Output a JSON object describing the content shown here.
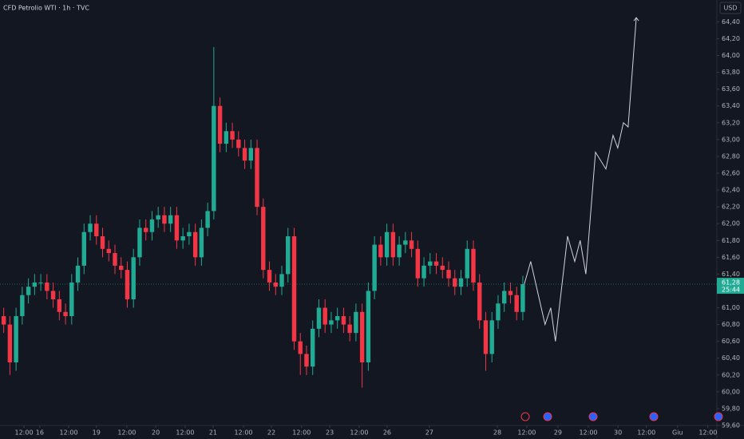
{
  "chart_data": {
    "type": "candlestick",
    "title": "CFD Petrolio WTI · 1h · TVC",
    "currency": "USD",
    "up_color": "#22ab94",
    "down_color": "#f23645",
    "x": [
      1.5,
      4,
      6.5,
      9,
      11.5,
      14,
      16.5,
      19,
      21.5,
      24,
      26.5,
      29,
      31.5,
      34,
      36.5,
      39,
      41.5,
      44,
      46.5,
      49,
      51.5,
      54,
      56.5,
      59,
      61.5,
      64,
      66.5,
      69,
      71.5,
      74,
      76.5,
      79,
      81.5,
      84,
      86.5,
      89,
      91.5,
      94,
      96.5,
      99,
      101.5,
      104,
      106.5,
      109,
      111.5,
      114,
      116.5,
      119,
      121.5,
      124,
      126.5,
      129,
      131.5,
      134,
      136.5,
      139,
      141.5,
      144,
      146.5,
      149,
      151.5,
      154,
      156.5,
      159,
      161.5,
      164,
      166.5,
      169,
      171.5,
      174,
      176.5,
      179,
      181.5,
      184,
      186.5,
      189,
      191.5,
      194,
      196.5,
      199,
      201.5,
      204,
      206.5,
      209,
      211.5
    ],
    "open": [
      60.9,
      60.8,
      60.35,
      60.9,
      61.15,
      61.25,
      61.3,
      61.3,
      61.2,
      61.1,
      60.95,
      60.9,
      61.3,
      61.5,
      61.9,
      62.0,
      61.85,
      61.7,
      61.65,
      61.5,
      61.45,
      61.1,
      61.6,
      61.95,
      61.9,
      62.05,
      62.1,
      62.0,
      62.1,
      61.8,
      61.85,
      61.9,
      61.6,
      61.95,
      62.15,
      63.4,
      62.95,
      63.1,
      63.0,
      62.9,
      62.75,
      62.9,
      62.2,
      61.45,
      61.3,
      61.25,
      61.4,
      61.85,
      60.6,
      60.45,
      60.3,
      60.75,
      61.0,
      60.8,
      60.85,
      60.9,
      60.8,
      60.7,
      60.95,
      60.35,
      61.2,
      61.75,
      61.6,
      61.9,
      61.6,
      61.75,
      61.8,
      61.7,
      61.35,
      61.5,
      61.55,
      61.5,
      61.45,
      61.35,
      61.25,
      61.35,
      61.7,
      61.3,
      60.85,
      60.45,
      60.85,
      61.05,
      61.2,
      61.15,
      60.95
    ],
    "high": [
      61.0,
      60.9,
      61.0,
      61.25,
      61.35,
      61.4,
      61.4,
      61.4,
      61.3,
      61.2,
      61.05,
      61.4,
      61.6,
      62.0,
      62.1,
      62.1,
      61.95,
      61.8,
      61.75,
      61.6,
      61.55,
      61.7,
      62.05,
      62.05,
      62.15,
      62.2,
      62.2,
      62.2,
      62.2,
      61.95,
      62.0,
      62.0,
      62.05,
      62.25,
      64.1,
      63.5,
      63.2,
      63.2,
      63.1,
      63.0,
      63.0,
      63.0,
      62.3,
      61.55,
      61.4,
      61.5,
      61.95,
      61.95,
      60.7,
      60.55,
      60.85,
      61.1,
      61.1,
      60.95,
      61.0,
      61.0,
      60.9,
      61.05,
      61.05,
      61.3,
      61.85,
      61.85,
      62.0,
      62.0,
      61.85,
      61.9,
      61.9,
      61.8,
      61.6,
      61.65,
      61.65,
      61.6,
      61.55,
      61.45,
      61.45,
      61.8,
      61.8,
      61.4,
      60.95,
      60.95,
      61.15,
      61.3,
      61.3,
      61.25,
      61.38
    ],
    "low": [
      60.7,
      60.2,
      60.25,
      60.8,
      61.05,
      61.15,
      61.2,
      61.1,
      61.0,
      60.85,
      60.8,
      60.8,
      61.2,
      61.4,
      61.8,
      61.75,
      61.6,
      61.55,
      61.4,
      61.35,
      61.0,
      61.0,
      61.5,
      61.8,
      61.8,
      61.95,
      61.9,
      61.9,
      61.7,
      61.7,
      61.75,
      61.5,
      61.5,
      61.85,
      62.05,
      62.85,
      62.85,
      62.9,
      62.8,
      62.65,
      62.65,
      62.1,
      61.35,
      61.2,
      61.15,
      61.15,
      61.3,
      60.5,
      60.2,
      60.2,
      60.2,
      60.65,
      60.7,
      60.7,
      60.75,
      60.7,
      60.6,
      60.6,
      60.05,
      60.25,
      61.1,
      61.5,
      61.5,
      61.5,
      61.5,
      61.65,
      61.6,
      61.25,
      61.25,
      61.4,
      61.4,
      61.35,
      61.25,
      61.15,
      61.15,
      61.25,
      61.2,
      60.75,
      60.25,
      60.35,
      60.75,
      60.95,
      61.05,
      60.85,
      60.85
    ],
    "close": [
      60.8,
      60.35,
      60.9,
      61.15,
      61.25,
      61.3,
      61.3,
      61.2,
      61.1,
      60.95,
      60.9,
      61.3,
      61.5,
      61.9,
      62.0,
      61.85,
      61.7,
      61.65,
      61.5,
      61.45,
      61.1,
      61.6,
      61.95,
      61.9,
      62.05,
      62.1,
      62.0,
      62.1,
      61.8,
      61.85,
      61.9,
      61.6,
      61.95,
      62.15,
      63.4,
      62.95,
      63.1,
      63.0,
      62.9,
      62.75,
      62.9,
      62.2,
      61.45,
      61.3,
      61.25,
      61.4,
      61.85,
      60.6,
      60.45,
      60.3,
      60.75,
      61.0,
      60.8,
      60.85,
      60.9,
      60.8,
      60.7,
      60.95,
      60.35,
      61.2,
      61.75,
      61.6,
      61.9,
      61.6,
      61.75,
      61.8,
      61.7,
      61.35,
      61.5,
      61.55,
      61.5,
      61.45,
      61.35,
      61.25,
      61.35,
      61.7,
      61.3,
      60.85,
      60.45,
      60.85,
      61.05,
      61.2,
      61.15,
      60.95,
      61.28
    ],
    "projection": {
      "color": "#d1d4dc",
      "x": [
        212.1,
        214.7,
        220.5,
        222.8,
        224.7,
        229.6,
        232.5,
        234.7,
        237,
        240.9,
        245.1,
        248,
        249.9,
        252.2,
        254.1,
        257.4
      ],
      "values": [
        61.28,
        61.55,
        60.8,
        61.0,
        60.6,
        61.85,
        61.55,
        61.8,
        61.4,
        62.85,
        62.65,
        63.05,
        62.9,
        63.2,
        63.15,
        64.45
      ]
    },
    "last_price": 61.28,
    "last_price_label": "61,28",
    "countdown": "25:44",
    "xlim": [
      0,
      290
    ],
    "ylim": [
      59.6,
      64.66
    ],
    "xticks": [
      {
        "value": 9.7,
        "label": "12:00"
      },
      {
        "value": 16.1,
        "label": "16"
      },
      {
        "value": 27.8,
        "label": "12:00"
      },
      {
        "value": 39,
        "label": "19"
      },
      {
        "value": 51.3,
        "label": "12:00"
      },
      {
        "value": 63,
        "label": "20"
      },
      {
        "value": 74.9,
        "label": "12:00"
      },
      {
        "value": 86.2,
        "label": "21"
      },
      {
        "value": 98.5,
        "label": "12:00"
      },
      {
        "value": 109.8,
        "label": "22"
      },
      {
        "value": 122,
        "label": "12:00"
      },
      {
        "value": 133.4,
        "label": "23"
      },
      {
        "value": 145.3,
        "label": "12:00"
      },
      {
        "value": 156.6,
        "label": "26"
      },
      {
        "value": 173.7,
        "label": "27"
      },
      {
        "value": 201.2,
        "label": "28"
      },
      {
        "value": 213.1,
        "label": "12:00"
      },
      {
        "value": 225.7,
        "label": "29"
      },
      {
        "value": 238,
        "label": "12:00"
      },
      {
        "value": 250,
        "label": "30"
      },
      {
        "value": 261.5,
        "label": "12:00"
      },
      {
        "value": 274.1,
        "label": "Giu"
      },
      {
        "value": 286.4,
        "label": "12:00"
      }
    ],
    "yticks": [
      {
        "value": 59.6,
        "label": "59,60"
      },
      {
        "value": 59.8,
        "label": "59,80"
      },
      {
        "value": 60.0,
        "label": "60,00"
      },
      {
        "value": 60.2,
        "label": "60,20"
      },
      {
        "value": 60.4,
        "label": "60,40"
      },
      {
        "value": 60.6,
        "label": "60,60"
      },
      {
        "value": 60.8,
        "label": "60,80"
      },
      {
        "value": 61.0,
        "label": "61,00"
      },
      {
        "value": 61.2,
        "label": "61,20"
      },
      {
        "value": 61.4,
        "label": "61,40"
      },
      {
        "value": 61.6,
        "label": "61,60"
      },
      {
        "value": 61.8,
        "label": "61,80"
      },
      {
        "value": 62.0,
        "label": "62,00"
      },
      {
        "value": 62.2,
        "label": "62,20"
      },
      {
        "value": 62.4,
        "label": "62,40"
      },
      {
        "value": 62.6,
        "label": "62,60"
      },
      {
        "value": 62.8,
        "label": "62,80"
      },
      {
        "value": 63.0,
        "label": "63,00"
      },
      {
        "value": 63.2,
        "label": "63,20"
      },
      {
        "value": 63.4,
        "label": "63,40"
      },
      {
        "value": 63.6,
        "label": "63,60"
      },
      {
        "value": 63.8,
        "label": "63,80"
      },
      {
        "value": 64.0,
        "label": "64,00"
      },
      {
        "value": 64.2,
        "label": "64,20"
      },
      {
        "value": 64.4,
        "label": "64,40"
      }
    ]
  }
}
